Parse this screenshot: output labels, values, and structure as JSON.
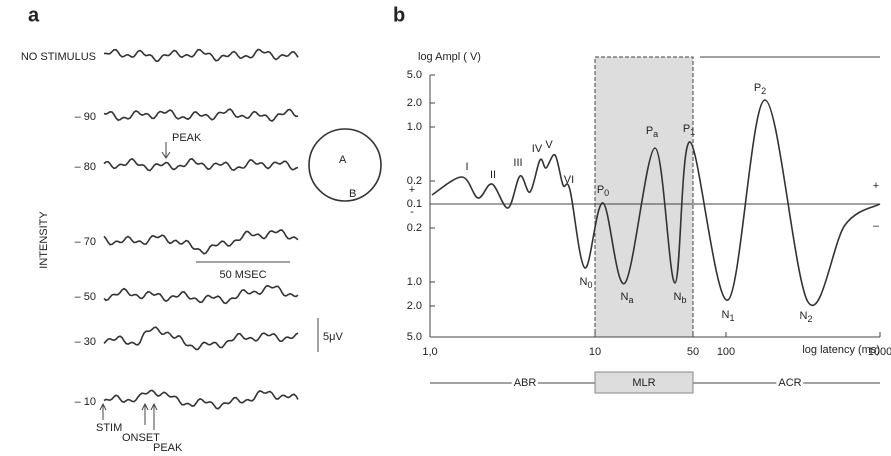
{
  "panel_a": {
    "letter": "a",
    "traces": [
      "NO STIMULUS",
      "– 90",
      "– 80",
      "– 70",
      "– 50",
      "– 30",
      "– 10"
    ],
    "y_label": "INTENSITY",
    "peak_top": "PEAK",
    "time_scale": "50 MSEC",
    "volt_scale": "5μV",
    "electrode_a": "A",
    "electrode_b": "B",
    "stim": "STIM",
    "onset": "ONSET",
    "peak_bottom": "PEAK"
  },
  "panel_b": {
    "letter": "b",
    "y_title": "log   Ampl (   V)",
    "y_tick_labels": [
      "5.0",
      "2.0",
      "1.0",
      "0.2",
      "0.1",
      "0.2",
      "1.0",
      "2.0",
      "5.0"
    ],
    "x_tick_labels": [
      "1,0",
      "10",
      "50",
      "100",
      "1000"
    ],
    "x_title": "log latency (ms)",
    "signs": [
      "+",
      "-",
      "+",
      "–"
    ],
    "peaks": [
      {
        "main": "I"
      },
      {
        "main": "II"
      },
      {
        "main": "III"
      },
      {
        "main": "IV"
      },
      {
        "main": "V"
      },
      {
        "main": "VI"
      },
      {
        "main": "P",
        "sub": "0"
      },
      {
        "main": "N",
        "sub": "0"
      },
      {
        "main": "N",
        "sub": "a"
      },
      {
        "main": "P",
        "sub": "a"
      },
      {
        "main": "N",
        "sub": "b"
      },
      {
        "main": "P",
        "sub": "1"
      },
      {
        "main": "N",
        "sub": "1"
      },
      {
        "main": "P",
        "sub": "2"
      },
      {
        "main": "N",
        "sub": "2"
      }
    ],
    "bands": [
      "ABR",
      "MLR",
      "ACR"
    ]
  }
}
